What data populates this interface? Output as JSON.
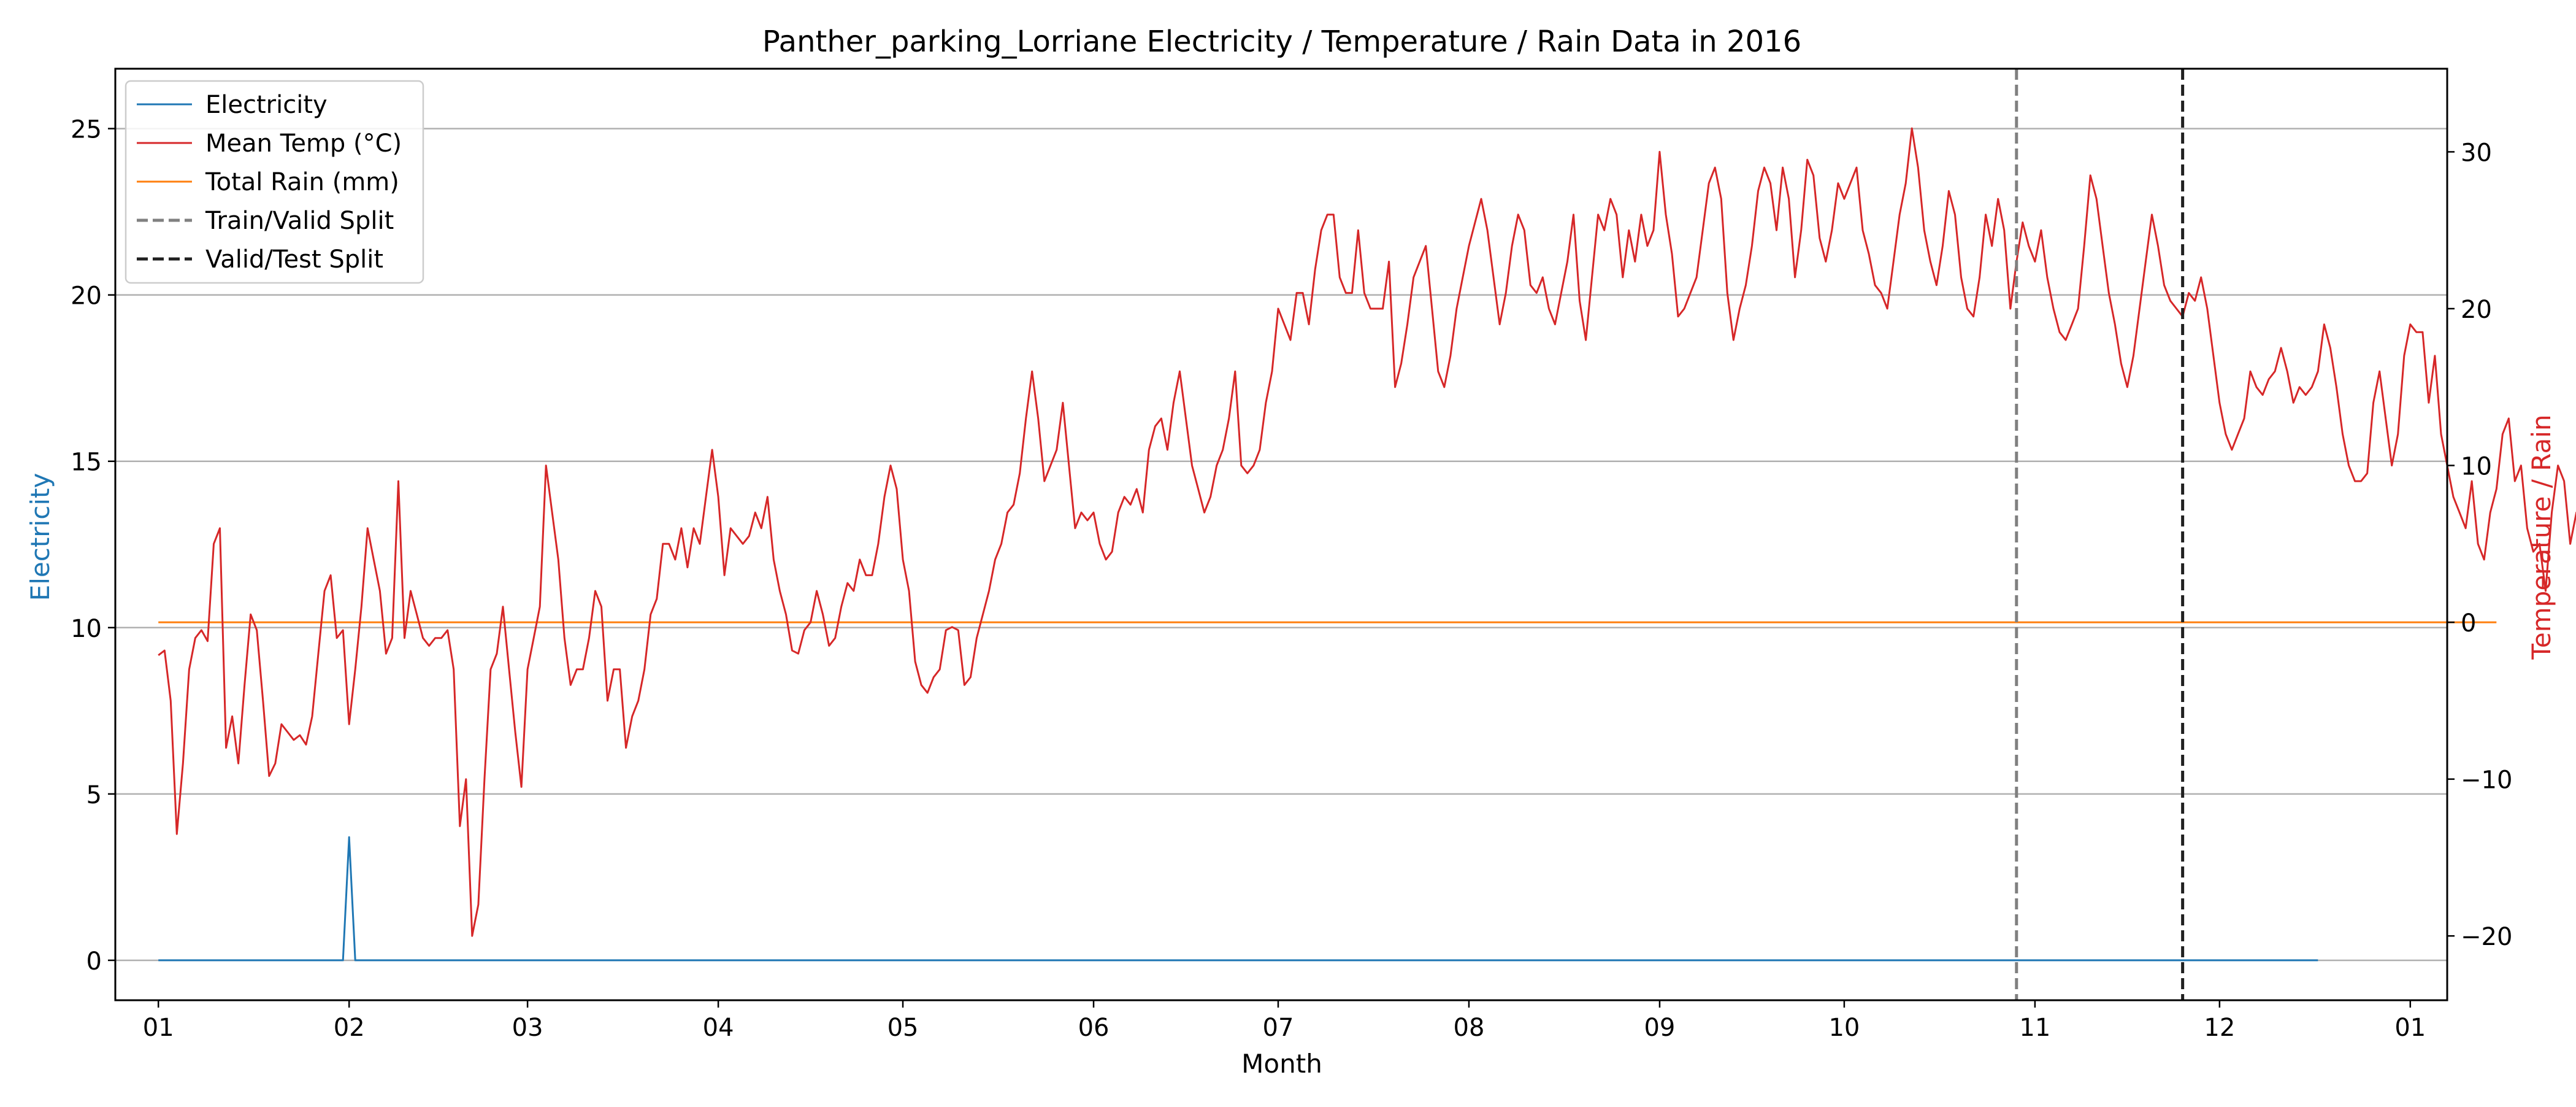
{
  "chart_data": {
    "type": "line",
    "title": "Panther_parking_Lorriane Electricity / Temperature / Rain Data in 2016",
    "xlabel": "Month",
    "ylabel_left": "Electricity",
    "ylabel_right": "Temperature / Rain",
    "x_ticks": [
      "01",
      "02",
      "03",
      "04",
      "05",
      "06",
      "07",
      "08",
      "09",
      "10",
      "11",
      "12",
      "01"
    ],
    "x_range": [
      "2015-12-25",
      "2017-01-07"
    ],
    "ylim_left": [
      -1.2,
      26.8
    ],
    "ylim_right": [
      -24.1,
      35.3
    ],
    "y_ticks_left": [
      0,
      5,
      10,
      15,
      20,
      25
    ],
    "y_ticks_right": [
      -20,
      -10,
      0,
      10,
      20,
      30
    ],
    "grid": "horizontal",
    "legend_position": "top-left",
    "colors": {
      "electricity": "#1f77b4",
      "temperature": "#d62728",
      "rain": "#ff7f0e",
      "train_valid_split": "#808080",
      "valid_test_split": "#202020",
      "grid": "#b0b0b0"
    },
    "legend": [
      {
        "key": "electricity",
        "label": "Electricity",
        "style": "solid"
      },
      {
        "key": "temperature",
        "label": "Mean Temp (°C)",
        "style": "solid"
      },
      {
        "key": "rain",
        "label": "Total Rain (mm)",
        "style": "solid"
      },
      {
        "key": "train_valid_split",
        "label": "Train/Valid Split",
        "style": "dashed"
      },
      {
        "key": "valid_test_split",
        "label": "Valid/Test Split",
        "style": "dashed"
      }
    ],
    "splits": {
      "train_valid": "2016-10-29",
      "valid_test": "2016-11-25"
    },
    "electricity": {
      "axis": "left",
      "start_date": "2016-01-01",
      "end_date": "2016-12-31",
      "values": [
        0,
        0,
        0,
        0,
        0,
        0,
        0,
        0,
        0,
        0,
        0,
        0,
        0,
        0,
        0,
        0,
        0,
        0,
        0,
        0,
        0,
        0,
        0,
        0,
        0,
        0,
        0,
        0,
        0,
        0,
        0,
        3.7,
        0,
        0,
        0,
        0,
        0,
        0,
        0,
        0,
        0,
        0,
        0,
        0,
        0,
        0,
        0,
        0,
        0,
        0,
        0,
        0,
        0,
        0,
        0,
        0,
        0,
        0,
        0,
        0,
        0,
        0,
        0,
        0,
        0,
        0,
        0,
        0,
        0,
        0,
        0,
        0,
        0,
        0,
        0,
        0,
        0,
        0,
        0,
        0,
        0,
        0,
        0,
        0,
        0,
        0,
        0,
        0,
        0,
        0,
        0,
        0,
        0,
        0,
        0,
        0,
        0,
        0,
        0,
        0,
        0,
        0,
        0,
        0,
        0,
        0,
        0,
        0,
        0,
        0,
        0,
        0,
        0,
        0,
        0,
        0,
        0,
        0,
        0,
        0,
        0,
        0,
        0,
        0,
        0,
        0,
        0,
        0,
        0,
        0,
        0,
        0,
        0,
        0,
        0,
        0,
        0,
        0,
        0,
        0,
        0,
        0,
        0,
        0,
        0,
        0,
        0,
        0,
        0,
        0,
        0,
        0,
        0,
        0,
        0,
        0,
        0,
        0,
        0,
        0,
        0,
        0,
        0,
        0,
        0,
        0,
        0,
        0,
        0,
        0,
        0,
        0,
        0,
        0,
        0,
        0,
        0,
        0,
        0,
        0,
        0,
        0,
        0,
        0,
        0,
        0,
        0,
        0,
        0,
        0,
        0,
        0,
        0,
        0,
        0,
        0,
        0,
        0,
        0,
        0,
        0,
        0,
        0,
        0,
        0,
        0,
        0,
        0,
        0,
        0,
        0,
        0,
        0,
        0,
        0,
        0,
        0,
        0,
        0,
        0,
        0,
        0,
        0,
        0,
        0,
        0,
        0,
        0,
        0,
        0,
        0,
        0,
        0,
        0,
        0,
        0,
        0,
        0,
        0,
        0,
        0,
        0,
        0,
        0,
        0,
        0,
        0,
        0,
        0,
        0,
        0,
        0,
        0,
        0,
        0,
        0,
        0,
        0,
        0,
        0,
        0,
        0,
        0,
        0,
        0,
        0,
        0,
        0,
        0,
        0,
        0,
        0,
        0,
        0,
        0,
        0,
        0,
        0,
        0,
        0,
        0,
        0,
        0,
        0,
        0,
        0,
        0,
        0,
        0,
        0,
        0,
        0,
        0,
        0,
        0,
        0,
        0,
        0,
        0,
        0,
        0,
        0,
        0,
        0,
        0,
        0,
        0,
        0,
        0,
        0,
        0,
        0,
        0,
        0,
        0,
        0,
        0,
        0,
        0,
        0,
        0,
        0,
        0,
        0,
        0,
        0,
        0,
        0,
        0,
        0,
        0,
        0,
        0,
        0,
        0,
        0,
        0,
        0,
        0,
        0,
        0,
        0,
        0,
        0,
        0,
        0,
        0,
        0,
        0,
        0,
        0,
        0
      ]
    },
    "temperature": {
      "axis": "right",
      "start_date": "2016-01-01",
      "end_date": "2016-12-31",
      "values": [
        -2.1,
        -1.8,
        -5.0,
        -13.5,
        -9.0,
        -3.0,
        -1.0,
        -0.5,
        -1.2,
        5.0,
        6.0,
        -8.0,
        -6.0,
        -9.0,
        -4.0,
        0.5,
        -0.5,
        -5.0,
        -9.8,
        -9.0,
        -6.5,
        -7.0,
        -7.5,
        -7.2,
        -7.8,
        -6.0,
        -2.0,
        2.0,
        3.0,
        -1.0,
        -0.5,
        -6.5,
        -3.0,
        1.0,
        6.0,
        4.0,
        2.0,
        -2.0,
        -1.0,
        9.0,
        -1.0,
        2.0,
        0.5,
        -1.0,
        -1.5,
        -1.0,
        -1.0,
        -0.5,
        -3.0,
        -13.0,
        -10.0,
        -20.0,
        -18.0,
        -10.0,
        -3.0,
        -2.0,
        1.0,
        -3.0,
        -7.0,
        -10.5,
        -3.0,
        -1.0,
        1.0,
        10.0,
        7.0,
        4.0,
        -1.0,
        -4.0,
        -3.0,
        -3.0,
        -1.0,
        2.0,
        1.0,
        -5.0,
        -3.0,
        -3.0,
        -8.0,
        -6.0,
        -5.0,
        -3.0,
        0.5,
        1.5,
        5.0,
        5.0,
        4.0,
        6.0,
        3.5,
        6.0,
        5.0,
        8.0,
        11.0,
        8.0,
        3.0,
        6.0,
        5.5,
        5.0,
        5.5,
        7.0,
        6.0,
        8.0,
        4.0,
        2.0,
        0.5,
        -1.8,
        -2.0,
        -0.5,
        0,
        2.0,
        0.5,
        -1.5,
        -1.0,
        1.0,
        2.5,
        2.0,
        4.0,
        3.0,
        3.0,
        5.0,
        8.0,
        10.0,
        8.5,
        4.0,
        2.0,
        -2.5,
        -4.0,
        -4.5,
        -3.5,
        -3.0,
        -0.5,
        -0.3,
        -0.5,
        -4.0,
        -3.5,
        -1.0,
        0.5,
        2.0,
        4.0,
        5.0,
        7.0,
        7.5,
        9.5,
        13.0,
        16.0,
        13.0,
        9.0,
        10.0,
        11.0,
        14.0,
        10.0,
        6.0,
        7.0,
        6.5,
        7.0,
        5.0,
        4.0,
        4.5,
        7.0,
        8.0,
        7.5,
        8.5,
        7.0,
        11.0,
        12.5,
        13.0,
        11.0,
        14.0,
        16.0,
        13.0,
        10.0,
        8.5,
        7.0,
        8.0,
        10.0,
        11.0,
        13.0,
        16.0,
        10.0,
        9.5,
        10.0,
        11.0,
        14.0,
        16.0,
        20.0,
        19.0,
        18.0,
        21.0,
        21.0,
        19.0,
        22.5,
        25.0,
        26.0,
        26.0,
        22.0,
        21.0,
        21.0,
        25.0,
        21.0,
        20.0,
        20.0,
        20.0,
        23.0,
        15.0,
        16.5,
        19.0,
        22.0,
        23.0,
        24.0,
        20.0,
        16.0,
        15.0,
        17.0,
        20.0,
        22.0,
        24.0,
        25.5,
        27.0,
        25.0,
        22.0,
        19.0,
        21.0,
        24.0,
        26.0,
        25.0,
        21.5,
        21.0,
        22.0,
        20.0,
        19.0,
        21.0,
        23.0,
        26.0,
        20.5,
        18.0,
        22.0,
        26.0,
        25.0,
        27.0,
        26.0,
        22.0,
        25.0,
        23.0,
        26.0,
        24.0,
        25.0,
        30.0,
        26.0,
        23.5,
        19.5,
        20.0,
        21.0,
        22.0,
        25.0,
        28.0,
        29.0,
        27.0,
        21.0,
        18.0,
        20.0,
        21.5,
        24.0,
        27.5,
        29.0,
        28.0,
        25.0,
        29.0,
        27.0,
        22.0,
        25.0,
        29.5,
        28.5,
        24.5,
        23.0,
        25.0,
        28.0,
        27.0,
        28.0,
        29.0,
        25.0,
        23.5,
        21.5,
        21.0,
        20.0,
        23.0,
        26.0,
        28.0,
        31.5,
        29.0,
        25.0,
        23.0,
        21.5,
        24.0,
        27.5,
        26.0,
        22.0,
        20.0,
        19.5,
        22.0,
        26.0,
        24.0,
        27.0,
        25.0,
        20.0,
        23.0,
        25.5,
        24.0,
        23.0,
        25.0,
        22.0,
        20.0,
        18.5,
        18.0,
        19.0,
        20.0,
        24.0,
        28.5,
        27.0,
        24.0,
        21.0,
        19.0,
        16.5,
        15.0,
        17.0,
        20.0,
        23.0,
        26.0,
        24.0,
        21.5,
        20.5,
        20.0,
        19.5,
        21.0,
        20.5,
        22.0,
        20.0,
        17.0,
        14.0,
        12.0,
        11.0,
        12.0,
        13.0,
        16.0,
        15.0,
        14.5,
        15.5,
        16.0,
        17.5,
        16.0,
        14.0,
        15.0,
        14.5,
        15.0,
        16.0,
        19.0,
        17.5,
        15.0,
        12.0,
        10.0,
        9.0,
        9.0,
        9.5,
        14.0,
        16.0,
        13.0,
        10.0,
        12.0,
        17.0,
        19.0,
        18.5,
        18.5,
        14.0,
        17.0,
        12.0,
        10.0,
        8.0,
        7.0,
        6.0,
        9.0,
        5.0,
        4.0,
        7.0,
        8.5,
        12.0,
        13.0,
        9.0,
        10.0,
        6.0,
        4.5,
        5.0,
        2.0,
        7.0,
        10.0,
        9.0,
        5.0,
        7.0,
        6.5,
        6.0,
        3.0,
        2.0,
        0.5,
        -0.5,
        1.0,
        -1.0,
        3.0,
        5.0,
        7.0,
        8.5,
        6.0,
        5.5,
        10.0,
        8.0,
        5.0,
        3.0,
        2.0,
        4.0,
        6.0,
        7.0,
        3.0,
        0.5,
        -1.0,
        -0.5,
        1.0,
        4.0,
        5.0,
        4.0,
        5.0,
        3.0,
        4.0,
        1.0,
        -1.0,
        -2.0,
        -4.0,
        -6.0,
        -9.0,
        -10.0,
        -7.0,
        -5.0,
        -3.0,
        -1.0,
        -6.0,
        -10.0,
        -8.0,
        -5.0,
        -3.0,
        -3.5,
        -2.0,
        -1.0,
        1.0,
        2.0,
        0.5,
        -1.0,
        0.5,
        -2.0,
        -1.0,
        0.5
      ]
    },
    "rain": {
      "axis": "right",
      "start_date": "2016-01-01",
      "end_date": "2016-12-31",
      "values": [
        0,
        0,
        0,
        0,
        0,
        0,
        0,
        0,
        0,
        0,
        0,
        0,
        0,
        0,
        0,
        0,
        0,
        0,
        0,
        0,
        0,
        0,
        0,
        0,
        0,
        0,
        0,
        0,
        0,
        0,
        0,
        0,
        0,
        0,
        0,
        0,
        0,
        0,
        0,
        0,
        0,
        0,
        0,
        0,
        0,
        0,
        0,
        0,
        0,
        0,
        0,
        0,
        0,
        0,
        0,
        0,
        0,
        0,
        0,
        0,
        0,
        0,
        0,
        0,
        0,
        0,
        0,
        0,
        0,
        0,
        0,
        0,
        0,
        0,
        0,
        0,
        0,
        0,
        0,
        0,
        0,
        0,
        0,
        0,
        0,
        0,
        0,
        0,
        0,
        0,
        0,
        0,
        0,
        0,
        0,
        0,
        0,
        0,
        0,
        0,
        0,
        0,
        0,
        0,
        0,
        0,
        0,
        0,
        0,
        0,
        0,
        0,
        0,
        0,
        0,
        0,
        0,
        0,
        0,
        0,
        0,
        0,
        0,
        0,
        0,
        0,
        0,
        0,
        0,
        0,
        0,
        0,
        0,
        0,
        0,
        0,
        0,
        0,
        0,
        0,
        0,
        0,
        0,
        0,
        0,
        0,
        0,
        0,
        0,
        0,
        0,
        0,
        0,
        0,
        0,
        0,
        0,
        0,
        0,
        0,
        0,
        0,
        0,
        0,
        0,
        0,
        0,
        0,
        0,
        0,
        0,
        0,
        0,
        0,
        0,
        0,
        0,
        0,
        0,
        0,
        0,
        0,
        0,
        0,
        0,
        0,
        0,
        0,
        0,
        0,
        0,
        0,
        0,
        0,
        0,
        0,
        0,
        0,
        0,
        0,
        0,
        0,
        0,
        0,
        0,
        0,
        0,
        0,
        0,
        0,
        0,
        0,
        0,
        0,
        0,
        0,
        0,
        0,
        0,
        0,
        0,
        0,
        0,
        0,
        0,
        0,
        0,
        0,
        0,
        0,
        0,
        0,
        0,
        0,
        0,
        0,
        0,
        0,
        0,
        0,
        0,
        0,
        0,
        0,
        0,
        0,
        0,
        0,
        0,
        0,
        0,
        0,
        0,
        0,
        0,
        0,
        0,
        0,
        0,
        0,
        0,
        0,
        0,
        0,
        0,
        0,
        0,
        0,
        0,
        0,
        0,
        0,
        0,
        0,
        0,
        0,
        0,
        0,
        0,
        0,
        0,
        0,
        0,
        0,
        0,
        0,
        0,
        0,
        0,
        0,
        0,
        0,
        0,
        0,
        0,
        0,
        0,
        0,
        0,
        0,
        0,
        0,
        0,
        0,
        0,
        0,
        0,
        0,
        0,
        0,
        0,
        0,
        0,
        0,
        0,
        0,
        0,
        0,
        0,
        0,
        0,
        0,
        0,
        0,
        0,
        0,
        0,
        0,
        0,
        0,
        0,
        0,
        0,
        0,
        0,
        0,
        0,
        0,
        0,
        0,
        0,
        0,
        0,
        0,
        0,
        0,
        0,
        0,
        0,
        0,
        0,
        0,
        0,
        0,
        0,
        0,
        0,
        0,
        0,
        0,
        0,
        0,
        0,
        0,
        0,
        0,
        0,
        0,
        0,
        0,
        0,
        0,
        0,
        0,
        0,
        0,
        0,
        0,
        0,
        0,
        0
      ]
    }
  }
}
